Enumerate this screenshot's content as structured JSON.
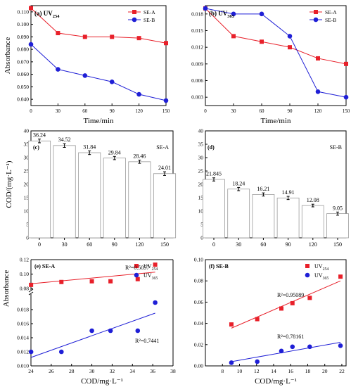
{
  "colors": {
    "series_a": "#e8202a",
    "series_b": "#1f1fd6",
    "axis": "#000000",
    "fit_a": "#e8202a",
    "fit_b": "#1f1fd6",
    "bar_fill": "#ffffff",
    "bar_edge": "#9a9a9a"
  },
  "chart_data": [
    {
      "id": "a",
      "type": "line",
      "panel_label": "(a) UV",
      "panel_sub": "254",
      "xlabel": "Time/min",
      "ylabel": "Absorbance",
      "xlim": [
        0,
        150
      ],
      "ylim": [
        0.035,
        0.115
      ],
      "xticks": [
        "0",
        "30",
        "60",
        "90",
        "120",
        "150"
      ],
      "yticks": [
        "0.040",
        "0.050",
        "0.060",
        "0.070",
        "0.080",
        "0.090",
        "0.100",
        "0.110"
      ],
      "series": [
        {
          "name": "SE-A",
          "x": [
            0,
            30,
            60,
            90,
            120,
            150
          ],
          "values": [
            0.113,
            0.093,
            0.09,
            0.09,
            0.089,
            0.085
          ]
        },
        {
          "name": "SE-B",
          "x": [
            0,
            30,
            60,
            90,
            120,
            150
          ],
          "values": [
            0.084,
            0.064,
            0.059,
            0.054,
            0.044,
            0.039
          ]
        }
      ],
      "legend": "top-right"
    },
    {
      "id": "b",
      "type": "line",
      "panel_label": "(b) UV",
      "panel_sub": "365",
      "xlabel": "Time/min",
      "ylabel": "",
      "xlim": [
        0,
        150
      ],
      "ylim": [
        0.0015,
        0.0195
      ],
      "xticks": [
        "0",
        "30",
        "60",
        "90",
        "120",
        "150"
      ],
      "yticks": [
        "0.003",
        "0.006",
        "0.009",
        "0.012",
        "0.015",
        "0.018"
      ],
      "series": [
        {
          "name": "SE-A",
          "x": [
            0,
            30,
            60,
            90,
            120,
            150
          ],
          "values": [
            0.019,
            0.014,
            0.013,
            0.012,
            0.01,
            0.009
          ]
        },
        {
          "name": "SE-B",
          "x": [
            0,
            30,
            60,
            90,
            120,
            150
          ],
          "values": [
            0.019,
            0.018,
            0.018,
            0.014,
            0.004,
            0.003
          ]
        }
      ],
      "legend": "top-right"
    },
    {
      "id": "c",
      "type": "bar",
      "panel_label": "(c)",
      "title": "SE-A",
      "xlabel": "",
      "ylabel": "COD/(mg·L⁻¹)",
      "ylim": [
        0,
        40
      ],
      "categories": [
        "0",
        "30",
        "60",
        "90",
        "120",
        "150"
      ],
      "values": [
        36.24,
        34.52,
        31.84,
        29.84,
        28.46,
        24.01
      ],
      "data_labels": [
        "36.24",
        "34.52",
        "31.84",
        "29.84",
        "28.46",
        "24.01"
      ],
      "errors": [
        0.7,
        0.7,
        0.7,
        0.6,
        0.6,
        0.7
      ],
      "yticks": [
        "0",
        "5",
        "10",
        "15",
        "20",
        "25",
        "30",
        "35",
        "40"
      ]
    },
    {
      "id": "d",
      "type": "bar",
      "panel_label": "(d)",
      "title": "SE-B",
      "xlabel": "",
      "ylabel": "",
      "ylim": [
        0,
        40
      ],
      "categories": [
        "0",
        "30",
        "60",
        "90",
        "120",
        "150"
      ],
      "values": [
        21.845,
        18.24,
        16.21,
        14.91,
        12.08,
        9.05
      ],
      "data_labels": [
        "21.845",
        "18.24",
        "16.21",
        "14.91",
        "12.08",
        "9.05"
      ],
      "errors": [
        0.6,
        0.6,
        0.6,
        0.6,
        0.5,
        0.6
      ],
      "yticks": [
        "0",
        "5",
        "10",
        "15",
        "20",
        "25",
        "30",
        "35",
        "40"
      ]
    },
    {
      "id": "e",
      "type": "scatter",
      "panel_label": "(e) SE-A",
      "xlabel": "COD/mg·L⁻¹",
      "ylabel": "Absorbance",
      "xlim": [
        24,
        38
      ],
      "xticks": [
        "24",
        "26",
        "28",
        "30",
        "32",
        "34",
        "36",
        "38"
      ],
      "upper_ylim": [
        0.08,
        0.12
      ],
      "upper_yticks": [
        "0.08",
        "0.10",
        "0.12"
      ],
      "lower_ylim": [
        0.01,
        0.02
      ],
      "lower_yticks": [
        "0.010",
        "0.012",
        "0.014",
        "0.016",
        "0.018"
      ],
      "series": [
        {
          "name": "UV",
          "sub": "254",
          "x": [
            24.01,
            27,
            30,
            31.84,
            34.52,
            36.24
          ],
          "values": [
            0.085,
            0.089,
            0.09,
            0.09,
            0.093,
            0.113
          ],
          "fit": [
            0.0866,
            0.1027
          ],
          "r2": "R²=0.5057"
        },
        {
          "name": "UV",
          "sub": "365",
          "x": [
            24.01,
            27,
            30,
            31.84,
            34.52,
            36.24
          ],
          "values": [
            0.012,
            0.012,
            0.015,
            0.015,
            0.015,
            0.019
          ],
          "fit": [
            0.0112,
            0.0175
          ],
          "r2": "R²=0.7441"
        }
      ],
      "legend": "top-right"
    },
    {
      "id": "f",
      "type": "scatter",
      "panel_label": "(f) SE-B",
      "xlabel": "COD/mg·L⁻¹",
      "ylabel": "",
      "xlim": [
        6,
        22.5
      ],
      "ylim": [
        0,
        0.1
      ],
      "xticks": [
        "8",
        "10",
        "12",
        "14",
        "16",
        "18",
        "20",
        "22"
      ],
      "yticks": [
        "0.00",
        "0.02",
        "0.04",
        "0.06",
        "0.08",
        "0.10"
      ],
      "series": [
        {
          "name": "UV",
          "sub": "254",
          "x": [
            9.05,
            12.08,
            14.91,
            16.21,
            18.24,
            21.845
          ],
          "values": [
            0.039,
            0.044,
            0.054,
            0.059,
            0.064,
            0.084
          ],
          "fit": [
            0.0355,
            0.08
          ],
          "r2": "R²=0.95089"
        },
        {
          "name": "UV",
          "sub": "365",
          "x": [
            9.05,
            12.08,
            14.91,
            16.21,
            18.24,
            21.845
          ],
          "values": [
            0.003,
            0.004,
            0.014,
            0.018,
            0.018,
            0.019
          ],
          "fit": [
            0.004,
            0.0222
          ],
          "r2": "R²=0.78161"
        }
      ],
      "legend": "top-right"
    }
  ]
}
